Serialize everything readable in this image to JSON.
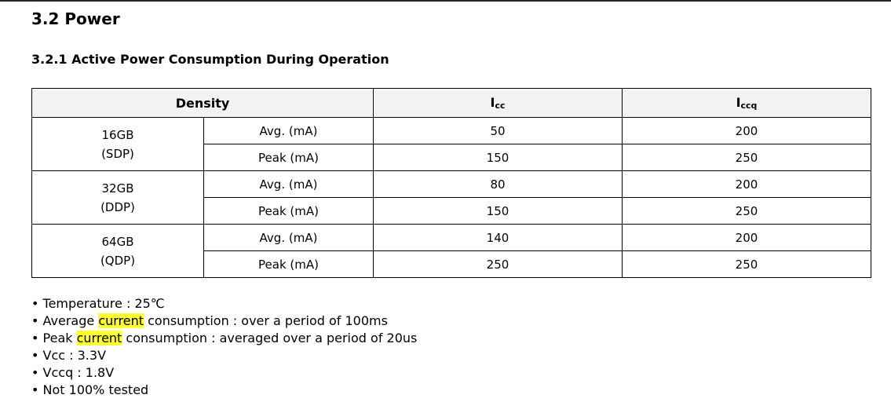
{
  "section_title": "3.2 Power",
  "subsection_title": "3.2.1 Active Power Consumption During Operation",
  "table": {
    "headers": {
      "density": "Density",
      "icc_main": "I",
      "icc_sub": "cc",
      "iccq_main": "I",
      "iccq_sub": "ccq"
    },
    "groups": [
      {
        "density": "16GB",
        "package": "(SDP)",
        "rows": [
          {
            "label": "Avg. (mA)",
            "icc": "50",
            "iccq": "200"
          },
          {
            "label": "Peak (mA)",
            "icc": "150",
            "iccq": "250"
          }
        ]
      },
      {
        "density": "32GB",
        "package": "(DDP)",
        "rows": [
          {
            "label": "Avg. (mA)",
            "icc": "80",
            "iccq": "200"
          },
          {
            "label": "Peak (mA)",
            "icc": "150",
            "iccq": "250"
          }
        ]
      },
      {
        "density": "64GB",
        "package": "(QDP)",
        "rows": [
          {
            "label": "Avg. (mA)",
            "icc": "140",
            "iccq": "200"
          },
          {
            "label": "Peak (mA)",
            "icc": "250",
            "iccq": "250"
          }
        ]
      }
    ]
  },
  "notes": [
    {
      "pre": "• Temperature : 25℃",
      "hl": "",
      "post": ""
    },
    {
      "pre": "• Average ",
      "hl": "current",
      "post": " consumption : over a period of 100ms"
    },
    {
      "pre": "• Peak ",
      "hl": "current",
      "post": " consumption : averaged over a period of 20us"
    },
    {
      "pre": "• Vcc : 3.3V",
      "hl": "",
      "post": ""
    },
    {
      "pre": "• Vccq : 1.8V",
      "hl": "",
      "post": ""
    },
    {
      "pre": "• Not 100% tested",
      "hl": "",
      "post": ""
    }
  ],
  "highlight_color": "#ffff33"
}
